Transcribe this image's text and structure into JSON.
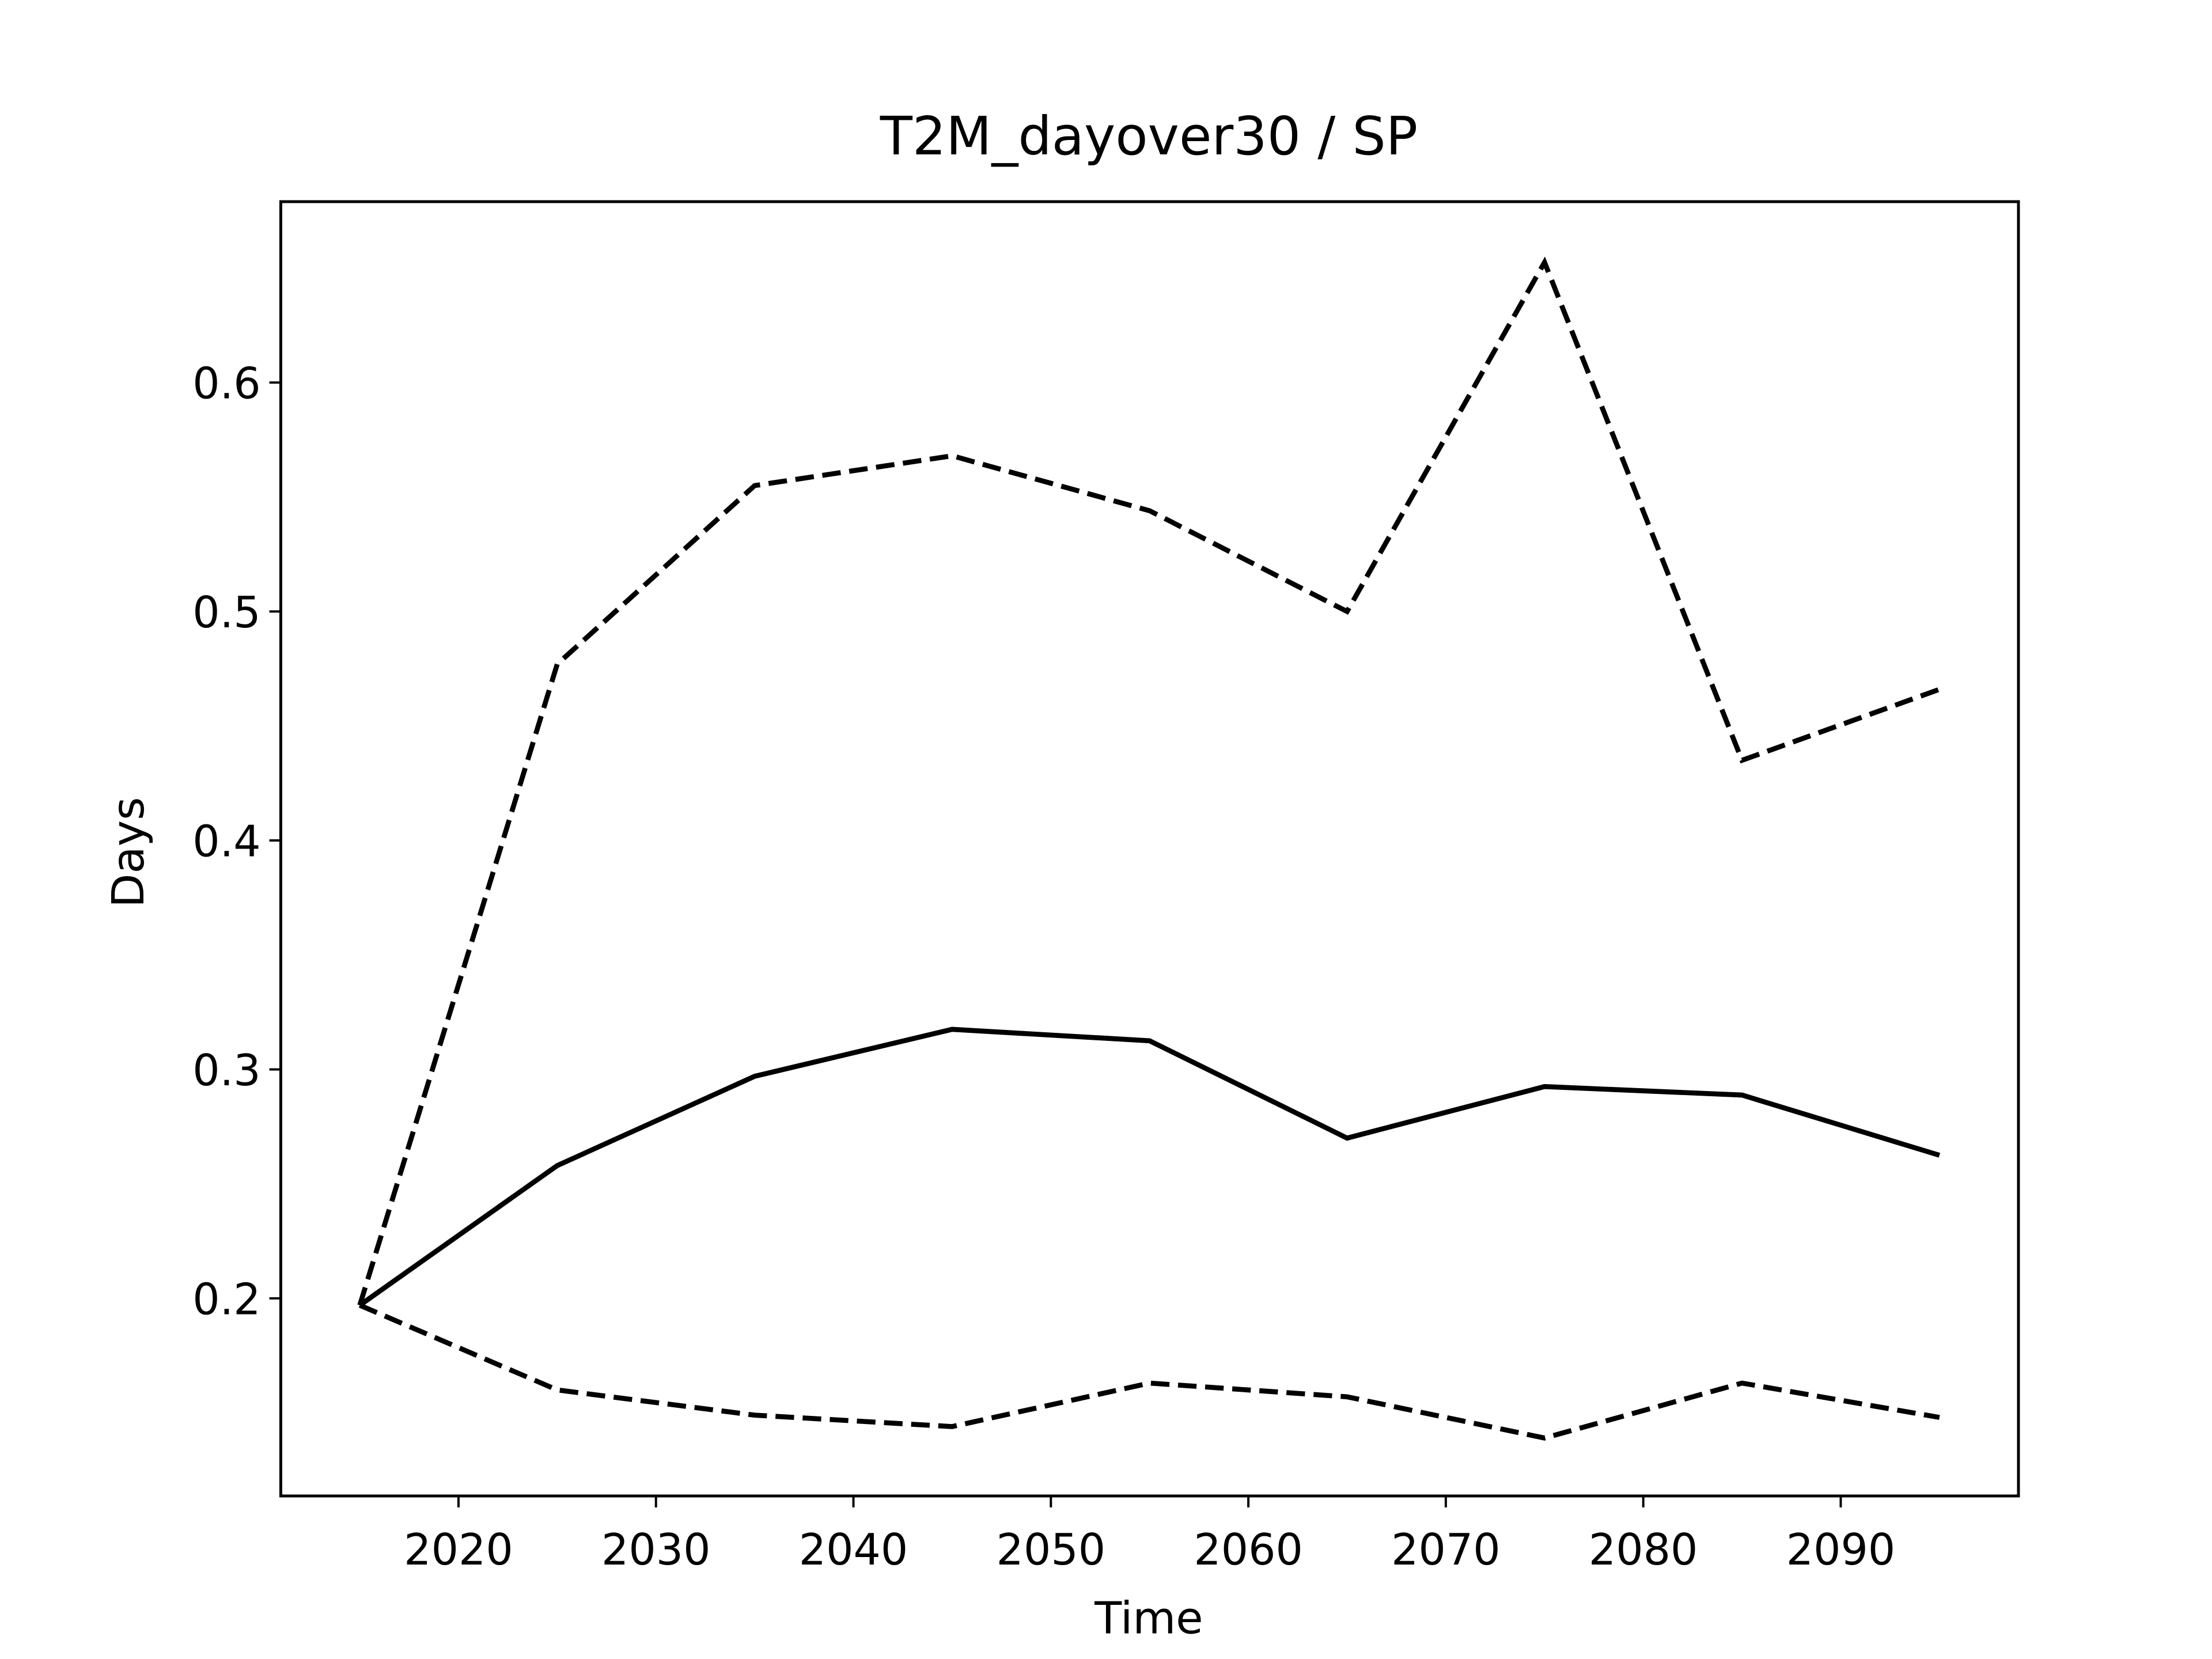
{
  "chart_data": {
    "type": "line",
    "title": "T2M_dayover30 / SP",
    "xlabel": "Time",
    "ylabel": "Days",
    "x": [
      2015,
      2025,
      2035,
      2045,
      2055,
      2065,
      2075,
      2085,
      2095
    ],
    "series": [
      {
        "color": "#000000",
        "dashed": false,
        "values": [
          0.197,
          0.258,
          0.297,
          0.3175,
          0.3125,
          0.27,
          0.2925,
          0.2888,
          0.2625
        ]
      },
      {
        "color": "#000000",
        "dashed": true,
        "values": [
          0.197,
          0.477,
          0.555,
          0.568,
          0.544,
          0.5,
          0.6525,
          0.435,
          0.466
        ]
      },
      {
        "color": "#000000",
        "dashed": true,
        "values": [
          0.197,
          0.16,
          0.149,
          0.144,
          0.163,
          0.157,
          0.139,
          0.163,
          0.148
        ]
      }
    ],
    "xlim": [
      2011,
      2099
    ],
    "xticks": [
      2020,
      2030,
      2040,
      2050,
      2060,
      2070,
      2080,
      2090
    ],
    "ylim": [
      0.1137,
      0.679
    ],
    "yticks": [
      0.2,
      0.3,
      0.4,
      0.5,
      0.6
    ],
    "grid": false
  }
}
